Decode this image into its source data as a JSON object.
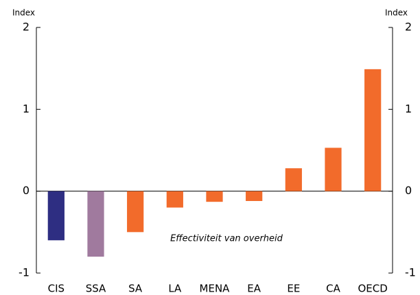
{
  "chart_data": {
    "type": "bar",
    "annotation": "Effectiviteit van overheid",
    "y_label": "Index",
    "y2_label": "Index",
    "categories": [
      "CIS",
      "SSA",
      "SA",
      "LA",
      "MENA",
      "EA",
      "EE",
      "CA",
      "OECD"
    ],
    "values": [
      -0.6,
      -0.8,
      -0.5,
      -0.2,
      -0.13,
      -0.12,
      0.28,
      0.53,
      1.49
    ],
    "colors": [
      "#2e2e82",
      "#a07a9e",
      "#f26b2b",
      "#f26b2b",
      "#f26b2b",
      "#f26b2b",
      "#f26b2b",
      "#f26b2b",
      "#f26b2b"
    ],
    "ylim": [
      -1,
      2
    ],
    "yticks": [
      -1,
      0,
      1,
      2
    ],
    "y2lim": [
      -1,
      2
    ],
    "y2ticks": [
      -1,
      0,
      1,
      2
    ],
    "grid": false
  }
}
